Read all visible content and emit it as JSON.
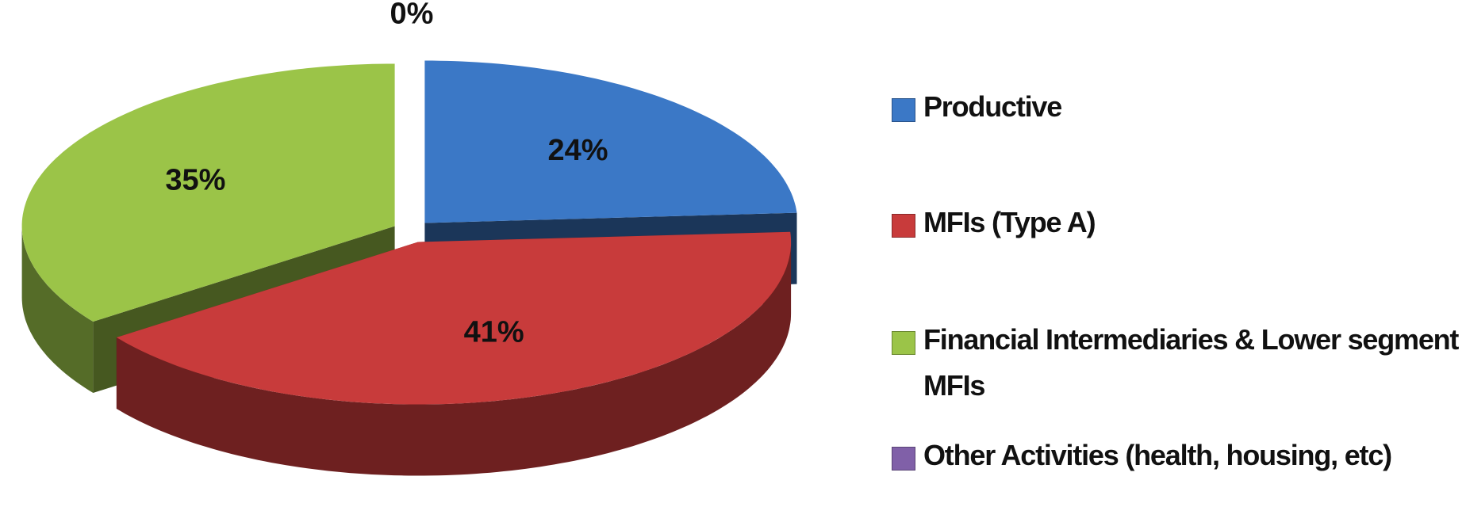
{
  "chart_data": {
    "type": "pie",
    "categories": [
      "Productive",
      "MFIs (Type A)",
      "Financial Intermediaries & Lower segment MFIs",
      "Other Activities (health, housing, etc)"
    ],
    "values": [
      24,
      41,
      35,
      0
    ],
    "value_labels": [
      "24%",
      "41%",
      "35%",
      "0%"
    ],
    "colors": [
      "#3b78c6",
      "#c83b3b",
      "#9bc448",
      "#8060a8"
    ],
    "legend": "right"
  }
}
